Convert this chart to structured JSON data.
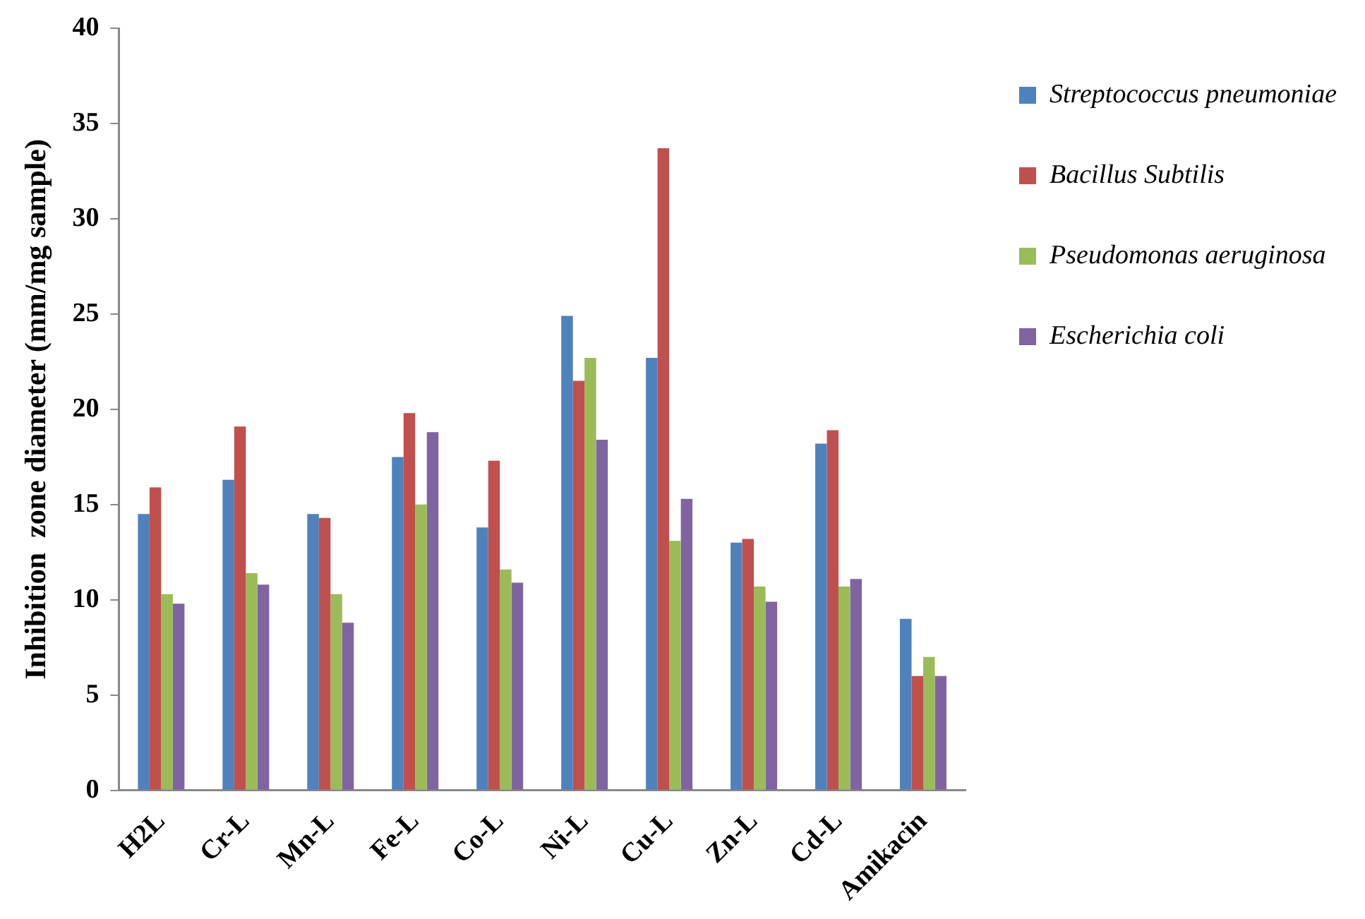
{
  "chart_data": {
    "type": "bar",
    "ylabel": "Inhibition  zone diameter (mm/mg sample)",
    "categories": [
      "H2L",
      "Cr-L",
      "Mn-L",
      "Fe-L",
      "Co-L",
      "Ni-L",
      "Cu-L",
      "Zn-L",
      "Cd-L",
      "Amikacin"
    ],
    "series": [
      {
        "name": "Streptococcus pneumoniae",
        "color": "#4f81bd",
        "values": [
          14.5,
          16.3,
          14.5,
          17.5,
          13.8,
          24.9,
          22.7,
          13.0,
          18.2,
          9.0
        ]
      },
      {
        "name": "Bacillus Subtilis",
        "color": "#c0504d",
        "values": [
          15.9,
          19.1,
          14.3,
          19.8,
          17.3,
          21.5,
          33.7,
          13.2,
          18.9,
          6.0
        ]
      },
      {
        "name": "Pseudomonas aeruginosa",
        "color": "#9bbb59",
        "values": [
          10.3,
          11.4,
          10.3,
          15.0,
          11.6,
          22.7,
          13.1,
          10.7,
          10.7,
          7.0
        ]
      },
      {
        "name": "Escherichia coli",
        "color": "#8064a2",
        "values": [
          9.8,
          10.8,
          8.8,
          18.8,
          10.9,
          18.4,
          15.3,
          9.9,
          11.1,
          6.0
        ]
      }
    ],
    "ylim": [
      0,
      40
    ],
    "yticks": [
      0,
      5,
      10,
      15,
      20,
      25,
      30,
      35,
      40
    ],
    "grid": false,
    "legend": "right"
  }
}
